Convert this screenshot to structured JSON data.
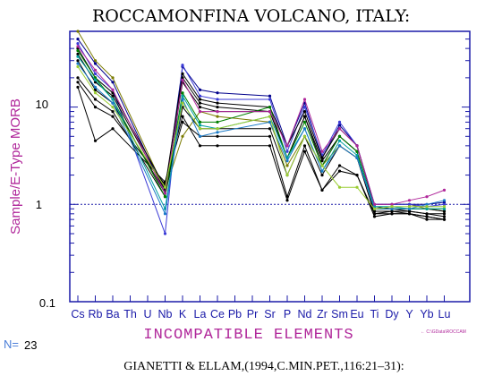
{
  "chart_data": {
    "type": "line",
    "title": "ROCCAMONFINA  VOLCANO,  ITALY:",
    "ylabel": "Sample/E-Type MORB",
    "xlabel": "INCOMPATIBLE  ELEMENTS",
    "y_scale": "log",
    "ylim": [
      0.1,
      60
    ],
    "y_ticks": [
      "0.1",
      "1",
      "10"
    ],
    "reference_line": 1,
    "categories": [
      "Cs",
      "Rb",
      "Ba",
      "Th",
      "U",
      "Nb",
      "K",
      "La",
      "Ce",
      "Pb",
      "Pr",
      "Sr",
      "P",
      "Nd",
      "Zr",
      "Sm",
      "Eu",
      "Ti",
      "Dy",
      "Y",
      "Yb",
      "Lu"
    ],
    "series": [
      {
        "color": "#7a7a00",
        "values": {
          "Cs": 60,
          "Rb": 30,
          "Ba": 20,
          "Nb": 1.4,
          "K": 5,
          "La": 9,
          "Ce": 8,
          "Sr": 7,
          "P": 2.5,
          "Nd": 5,
          "Zr": 2.5,
          "Sm": 4,
          "Eu": 3,
          "Ti": 1,
          "Dy": 1,
          "Y": 1,
          "Yb": 0.9,
          "Lu": 0.85
        }
      },
      {
        "color": "#00008b",
        "values": {
          "Cs": 50,
          "Rb": 28,
          "Ba": 18,
          "Nb": 1.3,
          "K": 26,
          "La": 15,
          "Ce": 14,
          "Sr": 13,
          "P": 4,
          "Nd": 11,
          "Zr": 3,
          "Sm": 6.5,
          "Eu": 4,
          "Ti": 1,
          "Dy": 1,
          "Y": 1,
          "Yb": 1,
          "Lu": 1.05
        }
      },
      {
        "color": "#3a3ad6",
        "values": {
          "Cs": 45,
          "Rb": 22,
          "Ba": 15,
          "Nb": 0.5,
          "K": 27,
          "La": 13,
          "Ce": 12,
          "Sr": 12,
          "P": 3.5,
          "Nd": 10,
          "Zr": 3.2,
          "Sm": 7,
          "Eu": 4,
          "Ti": 1,
          "Dy": 1,
          "Y": 1,
          "Yb": 0.95,
          "Lu": 1
        }
      },
      {
        "color": "#000000",
        "values": {
          "Cs": 40,
          "Rb": 20,
          "Ba": 14,
          "Nb": 1.5,
          "K": 22,
          "La": 12,
          "Ce": 11,
          "Sr": 10,
          "P": 4,
          "Nd": 9,
          "Zr": 3,
          "Sm": 6,
          "Eu": 4,
          "Ti": 0.95,
          "Dy": 0.9,
          "Y": 0.9,
          "Yb": 0.9,
          "Lu": 0.85
        }
      },
      {
        "color": "#000000",
        "values": {
          "Cs": 35,
          "Rb": 18,
          "Ba": 13,
          "Nb": 1.4,
          "K": 20,
          "La": 11,
          "Ce": 10,
          "Sr": 9,
          "P": 3,
          "Nd": 8,
          "Zr": 2.5,
          "Sm": 5,
          "Eu": 3.5,
          "Ti": 0.9,
          "Dy": 0.9,
          "Y": 0.85,
          "Yb": 0.8,
          "Lu": 0.8
        }
      },
      {
        "color": "#000000",
        "values": {
          "Cs": 30,
          "Rb": 15,
          "Ba": 11,
          "Nb": 1.3,
          "K": 18,
          "La": 10,
          "Ce": 9,
          "Sr": 9,
          "P": 3,
          "Nd": 8,
          "Zr": 2.8,
          "Sm": 5,
          "Eu": 3.5,
          "Ti": 0.85,
          "Dy": 0.85,
          "Y": 0.85,
          "Yb": 0.8,
          "Lu": 0.75
        }
      },
      {
        "color": "#000000",
        "values": {
          "Cs": 20,
          "Rb": 12,
          "Ba": 9,
          "Nb": 1.2,
          "K": 10,
          "La": 6,
          "Ce": 6,
          "Sr": 6,
          "P": 2,
          "Nd": 5,
          "Zr": 2,
          "Sm": 4,
          "Eu": 3,
          "Ti": 0.8,
          "Dy": 0.8,
          "Y": 0.8,
          "Yb": 0.75,
          "Lu": 0.7
        }
      },
      {
        "color": "#000000",
        "values": {
          "Cs": 18,
          "Rb": 10,
          "Ba": 8,
          "Nb": 1.6,
          "K": 7,
          "La": 5,
          "Ce": 5,
          "Sr": 5,
          "P": 1.2,
          "Nd": 4,
          "Zr": 1.4,
          "Sm": 2.5,
          "Eu": 2,
          "Ti": 0.75,
          "Dy": 0.8,
          "Y": 0.8,
          "Yb": 0.75,
          "Lu": 0.7
        }
      },
      {
        "color": "#000000",
        "values": {
          "Cs": 16,
          "Rb": 4.5,
          "Ba": 6,
          "Nb": 1.7,
          "K": 8,
          "La": 4,
          "Ce": 4,
          "Sr": 4,
          "P": 1.1,
          "Nd": 3.5,
          "Zr": 1.4,
          "Sm": 2.2,
          "Eu": 2,
          "Ti": 0.8,
          "Dy": 0.85,
          "Y": 0.8,
          "Yb": 0.7,
          "Lu": 0.7
        }
      },
      {
        "color": "#008000",
        "values": {
          "Cs": 38,
          "Rb": 20,
          "Ba": 12,
          "Nb": 1.2,
          "K": 14,
          "La": 7,
          "Ce": 7,
          "Sr": 10,
          "P": 3,
          "Nd": 7,
          "Zr": 2.5,
          "Sm": 5,
          "Eu": 3.5,
          "Ti": 0.9,
          "Dy": 0.9,
          "Y": 0.9,
          "Yb": 0.9,
          "Lu": 0.9
        }
      },
      {
        "color": "#00a0a0",
        "values": {
          "Cs": 33,
          "Rb": 19,
          "Ba": 12,
          "Nb": 0.9,
          "K": 13,
          "La": 6.5,
          "Ce": 6,
          "Sr": 8,
          "P": 3,
          "Nd": 6,
          "Zr": 2.2,
          "Sm": 4.5,
          "Eu": 3.2,
          "Ti": 0.95,
          "Dy": 0.95,
          "Y": 0.9,
          "Yb": 0.9,
          "Lu": 0.9
        }
      },
      {
        "color": "#b0279a",
        "values": {
          "Cs": 42,
          "Rb": 24,
          "Ba": 15,
          "Nb": 1.3,
          "K": 19,
          "La": 9,
          "Ce": 9,
          "Sr": 9,
          "P": 4,
          "Nd": 12,
          "Zr": 3.5,
          "Sm": 6,
          "Eu": 4,
          "Ti": 1,
          "Dy": 1,
          "Y": 1.1,
          "Yb": 1.2,
          "Lu": 1.4
        }
      },
      {
        "color": "#1a7ac8",
        "values": {
          "Cs": 28,
          "Rb": 16,
          "Ba": 11,
          "Nb": 0.8,
          "K": 12,
          "La": 5,
          "Ce": 5.5,
          "Sr": 7,
          "P": 2.8,
          "Nd": 6,
          "Zr": 2.2,
          "Sm": 4,
          "Eu": 3,
          "Ti": 0.9,
          "Dy": 0.9,
          "Y": 0.9,
          "Yb": 1,
          "Lu": 1.1
        }
      },
      {
        "color": "#9acd32",
        "values": {
          "Cs": 26,
          "Rb": 14,
          "Ba": 10,
          "Nb": 1.5,
          "K": 11,
          "La": 6,
          "Ce": 6,
          "Sr": 8,
          "P": 2,
          "Nd": 5,
          "Zr": 2.5,
          "Sm": 1.5,
          "Eu": 1.5,
          "Ti": 0.9,
          "Dy": 0.95,
          "Y": 0.95,
          "Yb": 0.95,
          "Lu": 0.95
        }
      }
    ],
    "n_label": "N=",
    "n_value": "23",
    "citation": "GIANETTI  &  ELLAM,(1994,C.MIN.PET.,116:21–31):",
    "source_tag": "← C:\\GData\\ROCCAM"
  }
}
